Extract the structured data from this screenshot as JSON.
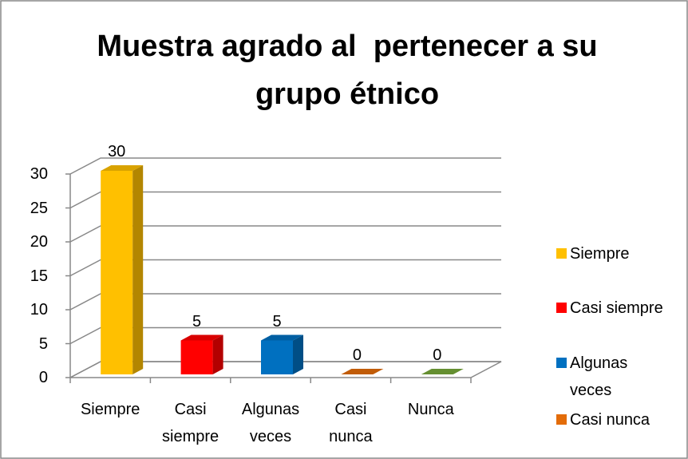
{
  "chart_data": {
    "type": "bar3d",
    "title": "Muestra agrado al  pertenecer a su grupo étnico",
    "categories": [
      "Siempre",
      "Casi siempre",
      "Algunas veces",
      "Casi nunca",
      "Nunca"
    ],
    "values": [
      30,
      5,
      5,
      0,
      0
    ],
    "colors": [
      "#ffc000",
      "#ff0000",
      "#0070c0",
      "#e36c09",
      "#77a83a"
    ],
    "ylim": [
      0,
      30
    ],
    "yticks": [
      0,
      5,
      10,
      15,
      20,
      25,
      30
    ],
    "grid": true,
    "legend": "right"
  }
}
